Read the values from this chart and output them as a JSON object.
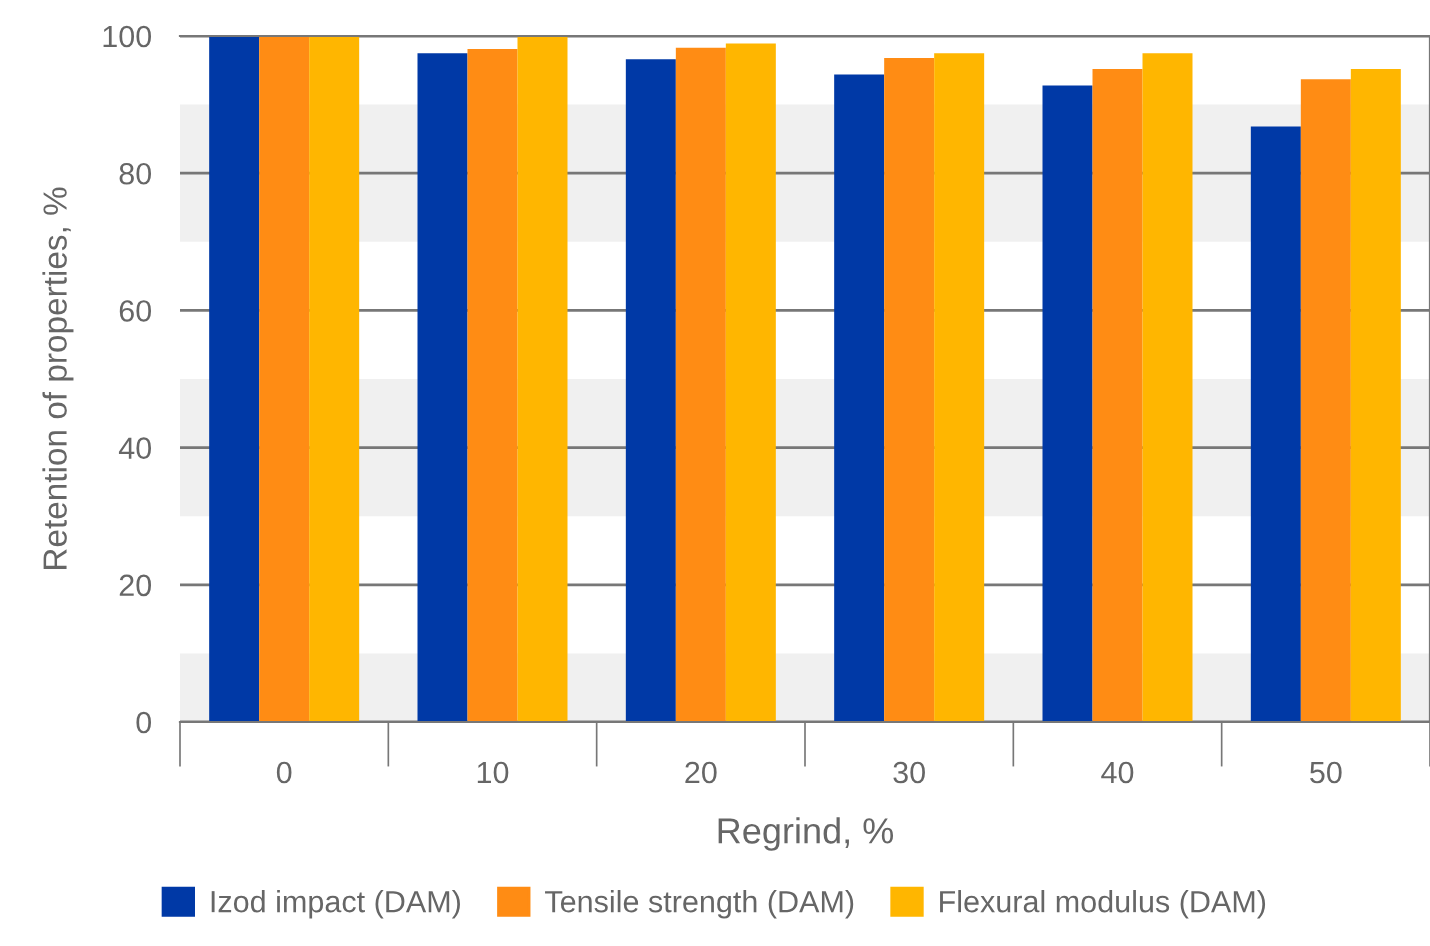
{
  "chart_data": {
    "type": "bar",
    "xlabel": "Regrind, %",
    "ylabel": "Retention of properties, %",
    "categories": [
      "0",
      "10",
      "20",
      "30",
      "40",
      "50"
    ],
    "series": [
      {
        "name": "Izod impact (DAM)",
        "color": "#0039a6",
        "values": [
          100,
          97.5,
          96.6,
          94.4,
          92.8,
          86.8
        ]
      },
      {
        "name": "Tensile strength (DAM)",
        "color": "#ff8c14",
        "values": [
          100,
          98.1,
          98.3,
          96.8,
          95.2,
          93.7
        ]
      },
      {
        "name": "Flexural modulus (DAM)",
        "color": "#ffb600",
        "values": [
          100,
          100,
          98.9,
          97.5,
          97.5,
          95.2
        ]
      }
    ],
    "ylim": [
      0,
      100
    ],
    "yticks": [
      0,
      20,
      40,
      60,
      80,
      100
    ],
    "grid": "y",
    "legend": "bottom",
    "bands": [
      {
        "axis": "y",
        "from": 0,
        "to": 10,
        "color": "#f0f0f0"
      },
      {
        "axis": "y",
        "from": 30,
        "to": 50,
        "color": "#f0f0f0"
      },
      {
        "axis": "y",
        "from": 70,
        "to": 90,
        "color": "#f0f0f0"
      }
    ]
  }
}
